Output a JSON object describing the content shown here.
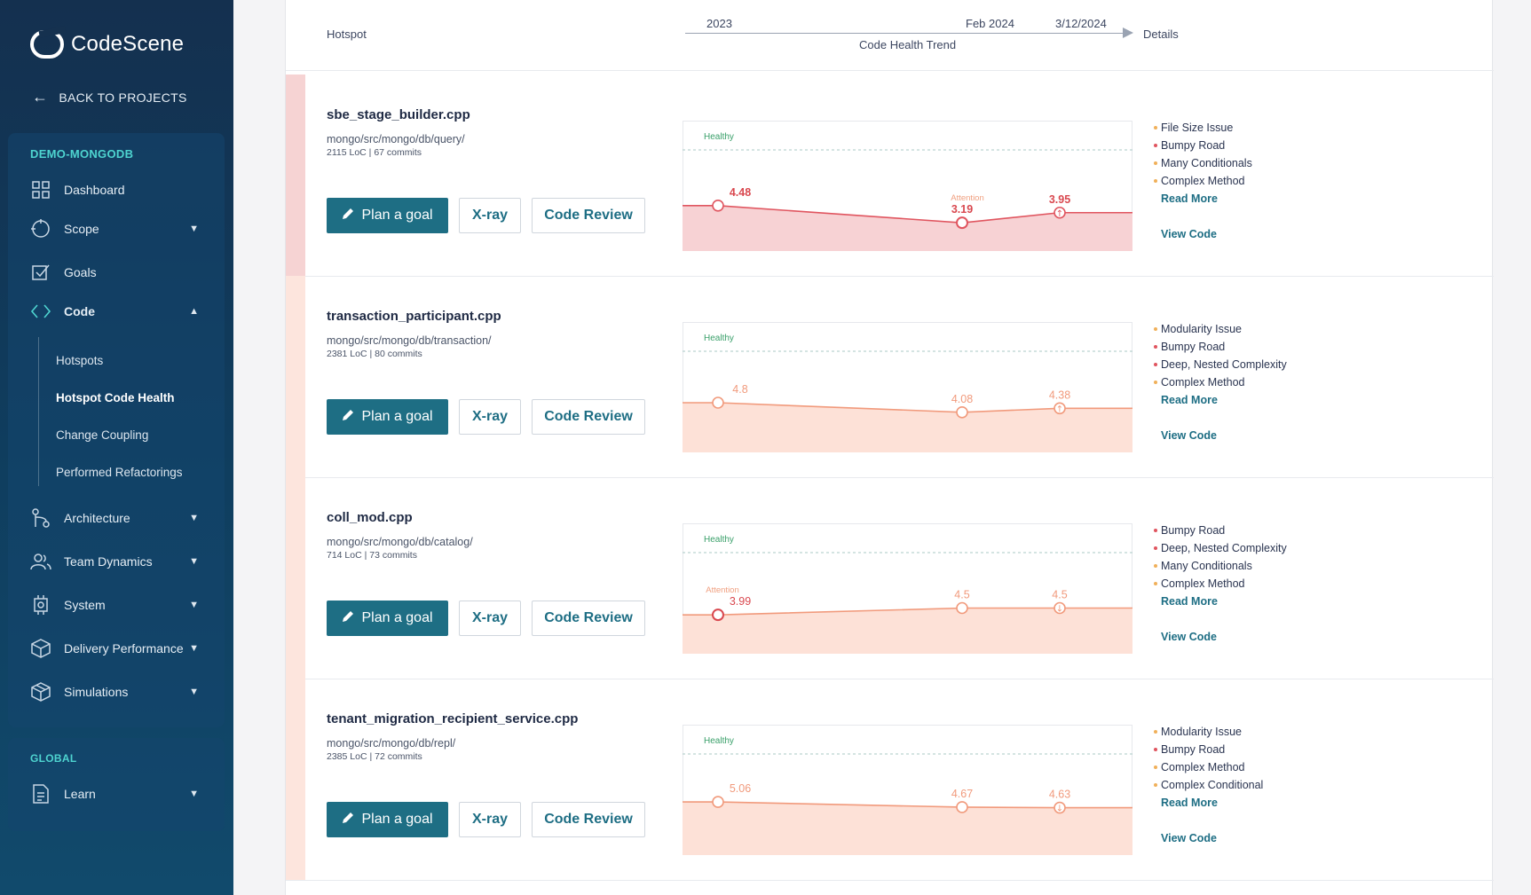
{
  "sidebar": {
    "logo_text": "CodeScene",
    "back_label": "BACK TO PROJECTS",
    "project_title": "DEMO-MONGODB",
    "nav": [
      {
        "label": "Dashboard"
      },
      {
        "label": "Scope"
      },
      {
        "label": "Goals"
      },
      {
        "label": "Code"
      },
      {
        "label": "Architecture"
      },
      {
        "label": "Team Dynamics"
      },
      {
        "label": "System"
      },
      {
        "label": "Delivery Performance"
      },
      {
        "label": "Simulations"
      }
    ],
    "code_sub": [
      "Hotspots",
      "Hotspot Code Health",
      "Change Coupling",
      "Performed Refactorings"
    ],
    "global_title": "GLOBAL",
    "learn_label": "Learn"
  },
  "header": {
    "hotspot": "Hotspot",
    "trend": "Code Health Trend",
    "details": "Details",
    "timeline": [
      "2023",
      "Feb 2024",
      "3/12/2024"
    ]
  },
  "buttons": {
    "goal": "Plan a goal",
    "xray": "X-ray",
    "review": "Code Review",
    "read_more": "Read More",
    "view_code": "View Code"
  },
  "chart_labels": {
    "healthy": "Healthy",
    "attention": "Attention"
  },
  "colors": {
    "red": "#e0555f",
    "orange": "#f19a7c",
    "teal": "#1e6e84",
    "healthy": "#3aa06a"
  },
  "hotspots": [
    {
      "file": "sbe_stage_builder.cpp",
      "path": "mongo/src/mongo/db/query/",
      "meta": "2115 LoC | 67 commits",
      "severity": "red",
      "scores": [
        "4.48",
        "3.19",
        "3.95"
      ],
      "score_values": [
        4.48,
        3.19,
        3.95
      ],
      "attention_at": 1,
      "trend_icon": "up",
      "issues": [
        {
          "label": "File Size Issue",
          "color": "#f0b05a"
        },
        {
          "label": "Bumpy Road",
          "color": "#e0555f"
        },
        {
          "label": "Many Conditionals",
          "color": "#f0b05a"
        },
        {
          "label": "Complex Method",
          "color": "#f0b05a"
        }
      ]
    },
    {
      "file": "transaction_participant.cpp",
      "path": "mongo/src/mongo/db/transaction/",
      "meta": "2381 LoC | 80 commits",
      "severity": "orange",
      "scores": [
        "4.8",
        "4.08",
        "4.38"
      ],
      "score_values": [
        4.8,
        4.08,
        4.38
      ],
      "attention_at": -1,
      "trend_icon": "up",
      "issues": [
        {
          "label": "Modularity Issue",
          "color": "#f0b05a"
        },
        {
          "label": "Bumpy Road",
          "color": "#e0555f"
        },
        {
          "label": "Deep, Nested Complexity",
          "color": "#e0555f"
        },
        {
          "label": "Complex Method",
          "color": "#f0b05a"
        }
      ]
    },
    {
      "file": "coll_mod.cpp",
      "path": "mongo/src/mongo/db/catalog/",
      "meta": "714 LoC | 73 commits",
      "severity": "orange",
      "scores": [
        "3.99",
        "4.5",
        "4.5"
      ],
      "score_values": [
        3.99,
        4.5,
        4.5
      ],
      "attention_at": 0,
      "trend_icon": "down",
      "issues": [
        {
          "label": "Bumpy Road",
          "color": "#e0555f"
        },
        {
          "label": "Deep, Nested Complexity",
          "color": "#e0555f"
        },
        {
          "label": "Many Conditionals",
          "color": "#f0b05a"
        },
        {
          "label": "Complex Method",
          "color": "#f0b05a"
        }
      ]
    },
    {
      "file": "tenant_migration_recipient_service.cpp",
      "path": "mongo/src/mongo/db/repl/",
      "meta": "2385 LoC | 72 commits",
      "severity": "orange",
      "scores": [
        "5.06",
        "4.67",
        "4.63"
      ],
      "score_values": [
        5.06,
        4.67,
        4.63
      ],
      "attention_at": -1,
      "trend_icon": "down",
      "issues": [
        {
          "label": "Modularity Issue",
          "color": "#f0b05a"
        },
        {
          "label": "Bumpy Road",
          "color": "#e0555f"
        },
        {
          "label": "Complex Method",
          "color": "#f0b05a"
        },
        {
          "label": "Complex Conditional",
          "color": "#f0b05a"
        }
      ]
    }
  ]
}
